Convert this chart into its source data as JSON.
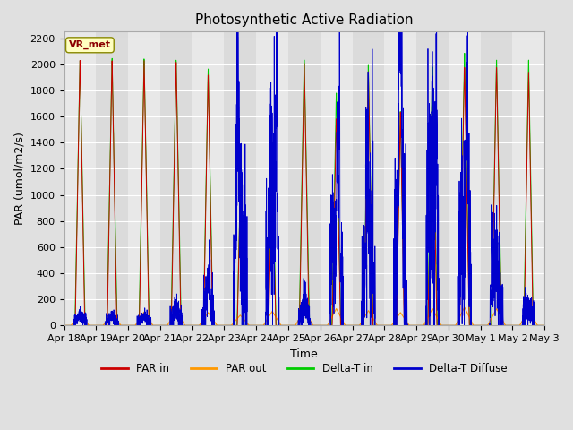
{
  "title": "Photosynthetic Active Radiation",
  "ylabel": "PAR (umol/m2/s)",
  "xlabel": "Time",
  "annotation": "VR_met",
  "ylim": [
    0,
    2250
  ],
  "yticks": [
    0,
    200,
    400,
    600,
    800,
    1000,
    1200,
    1400,
    1600,
    1800,
    2000,
    2200
  ],
  "xtick_labels": [
    "Apr 18",
    "Apr 19",
    "Apr 20",
    "Apr 21",
    "Apr 22",
    "Apr 23",
    "Apr 24",
    "Apr 25",
    "Apr 26",
    "Apr 27",
    "Apr 28",
    "Apr 29",
    "Apr 30",
    "May 1",
    "May 2",
    "May 3"
  ],
  "colors": {
    "PAR_in": "#cc0000",
    "PAR_out": "#ff9900",
    "Delta_T_in": "#00cc00",
    "Delta_T_Diffuse": "#0000cc"
  },
  "legend_labels": [
    "PAR in",
    "PAR out",
    "Delta-T in",
    "Delta-T Diffuse"
  ],
  "background_color": "#e8e8e8",
  "figure_color": "#e0e0e0",
  "grid_color": "#ffffff",
  "title_fontsize": 11,
  "label_fontsize": 9,
  "tick_fontsize": 8
}
